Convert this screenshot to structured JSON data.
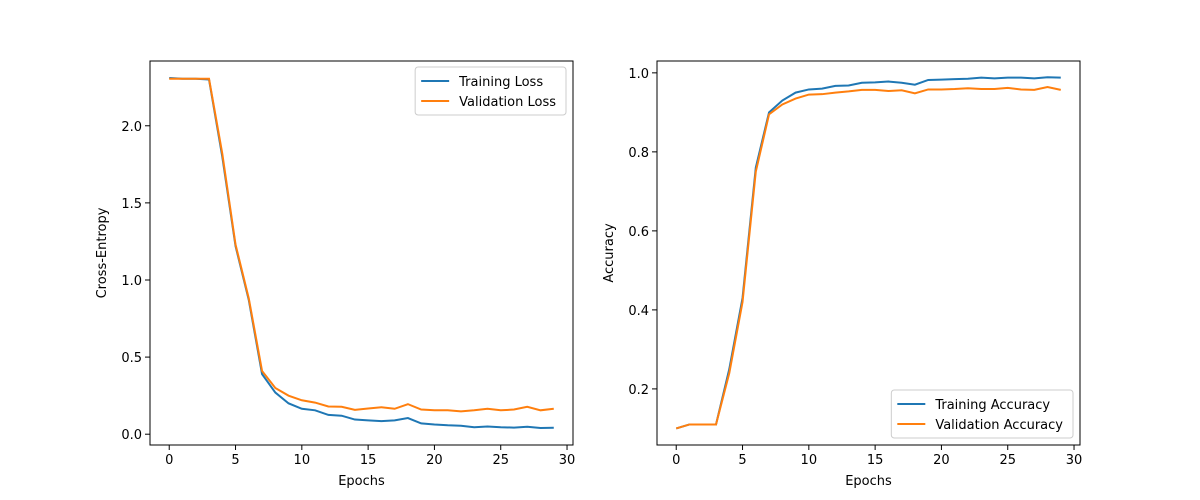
{
  "chart_data": [
    {
      "type": "line",
      "xlabel": "Epochs",
      "ylabel": "Cross-Entropy",
      "x": [
        0,
        1,
        2,
        3,
        4,
        5,
        6,
        7,
        8,
        9,
        10,
        11,
        12,
        13,
        14,
        15,
        16,
        17,
        18,
        19,
        20,
        21,
        22,
        23,
        24,
        25,
        26,
        27,
        28,
        29
      ],
      "series": [
        {
          "name": "Training Loss",
          "color": "#1f77b4",
          "values": [
            2.31,
            2.305,
            2.305,
            2.3,
            1.8,
            1.22,
            0.87,
            0.39,
            0.27,
            0.2,
            0.165,
            0.155,
            0.125,
            0.12,
            0.095,
            0.09,
            0.085,
            0.09,
            0.105,
            0.07,
            0.063,
            0.058,
            0.055,
            0.045,
            0.05,
            0.045,
            0.043,
            0.048,
            0.04,
            0.042
          ]
        },
        {
          "name": "Validation Loss",
          "color": "#ff7f0e",
          "values": [
            2.305,
            2.305,
            2.305,
            2.305,
            1.82,
            1.23,
            0.88,
            0.41,
            0.3,
            0.25,
            0.22,
            0.205,
            0.18,
            0.178,
            0.158,
            0.167,
            0.175,
            0.165,
            0.195,
            0.16,
            0.155,
            0.155,
            0.148,
            0.155,
            0.165,
            0.155,
            0.16,
            0.178,
            0.155,
            0.165
          ]
        }
      ],
      "xlim": [
        -1.45,
        30.45
      ],
      "xticks": [
        0,
        5,
        10,
        15,
        20,
        25,
        30
      ],
      "ylim": [
        -0.07,
        2.42
      ],
      "yticks": [
        {
          "value": 0,
          "label": "0.0"
        },
        0.5,
        {
          "value": 1,
          "label": "1.0"
        },
        1.5,
        {
          "value": 2,
          "label": "2.0"
        }
      ],
      "legend": "upper right"
    },
    {
      "type": "line",
      "xlabel": "Epochs",
      "ylabel": "Accuracy",
      "x": [
        0,
        1,
        2,
        3,
        4,
        5,
        6,
        7,
        8,
        9,
        10,
        11,
        12,
        13,
        14,
        15,
        16,
        17,
        18,
        19,
        20,
        21,
        22,
        23,
        24,
        25,
        26,
        27,
        28,
        29
      ],
      "series": [
        {
          "name": "Training Accuracy",
          "color": "#1f77b4",
          "values": [
            0.1,
            0.11,
            0.11,
            0.11,
            0.25,
            0.43,
            0.76,
            0.9,
            0.93,
            0.95,
            0.958,
            0.96,
            0.967,
            0.968,
            0.975,
            0.976,
            0.978,
            0.975,
            0.97,
            0.982,
            0.983,
            0.984,
            0.985,
            0.988,
            0.986,
            0.988,
            0.988,
            0.986,
            0.989,
            0.988
          ]
        },
        {
          "name": "Validation Accuracy",
          "color": "#ff7f0e",
          "values": [
            0.1,
            0.11,
            0.11,
            0.11,
            0.24,
            0.42,
            0.75,
            0.895,
            0.92,
            0.935,
            0.945,
            0.946,
            0.95,
            0.953,
            0.957,
            0.957,
            0.954,
            0.956,
            0.948,
            0.958,
            0.958,
            0.959,
            0.961,
            0.959,
            0.959,
            0.962,
            0.958,
            0.957,
            0.964,
            0.957
          ]
        }
      ],
      "xlim": [
        -1.45,
        30.45
      ],
      "xticks": [
        0,
        5,
        10,
        15,
        20,
        25,
        30
      ],
      "ylim": [
        0.058,
        1.03
      ],
      "yticks": [
        0.2,
        0.4,
        0.6,
        0.8,
        {
          "value": 1,
          "label": "1.0"
        }
      ],
      "legend": "lower right"
    }
  ]
}
